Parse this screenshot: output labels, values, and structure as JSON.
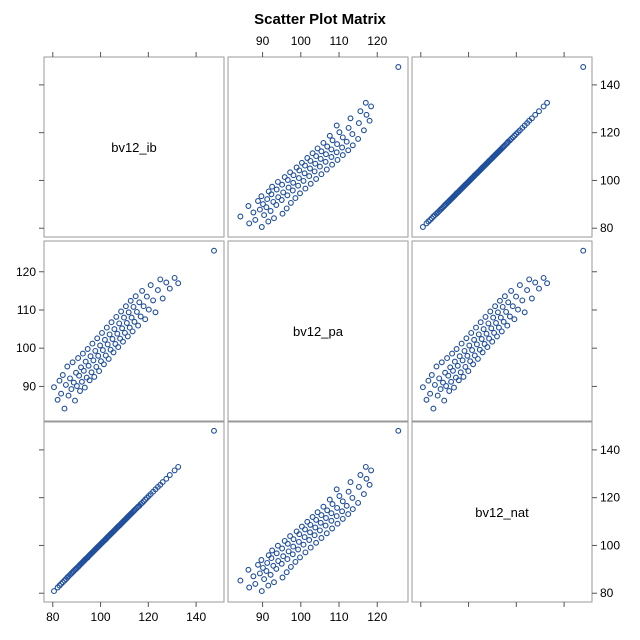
{
  "chart_data": {
    "type": "scatter",
    "title": "Scatter Plot Matrix",
    "layout": "3x3 scatter plot matrix",
    "variables": [
      "bv12_ib",
      "bv12_pa",
      "bv12_nat"
    ],
    "axes": {
      "bv12_ib": {
        "range": [
          78,
          150
        ],
        "ticks": [
          80,
          100,
          120,
          140
        ]
      },
      "bv12_pa": {
        "range": [
          82,
          127
        ],
        "ticks": [
          90,
          100,
          110,
          120
        ]
      },
      "bv12_nat": {
        "range": [
          78,
          150
        ],
        "ticks": [
          80,
          100,
          120,
          140
        ]
      }
    },
    "tick_placement": {
      "top": [
        "bv12_pa"
      ],
      "bottom": [
        "bv12_ib",
        "bv12_pa"
      ],
      "left": [
        "bv12_pa"
      ],
      "right": [
        "bv12_ib",
        "bv12_nat"
      ]
    },
    "marker_color": "#1f4e9c",
    "marker": "open-circle",
    "grid": false,
    "legend": "none",
    "series": [
      {
        "pairs": [
          [
            80.5,
            89.8,
            80.9
          ],
          [
            82.0,
            86.5,
            82.4
          ],
          [
            82.8,
            91.5,
            83.2
          ],
          [
            83.5,
            88.1,
            83.9
          ],
          [
            84.2,
            93.0,
            84.6
          ],
          [
            84.9,
            84.2,
            85.3
          ],
          [
            85.5,
            90.4,
            85.9
          ],
          [
            86.1,
            95.2,
            86.6
          ],
          [
            86.6,
            87.6,
            87.1
          ],
          [
            87.2,
            92.1,
            87.7
          ],
          [
            87.8,
            89.3,
            88.3
          ],
          [
            88.3,
            96.3,
            88.8
          ],
          [
            88.8,
            91.0,
            89.3
          ],
          [
            89.3,
            86.3,
            89.8
          ],
          [
            89.7,
            93.6,
            90.2
          ],
          [
            90.1,
            90.1,
            90.6
          ],
          [
            90.6,
            97.4,
            91.0
          ],
          [
            91.0,
            92.8,
            91.5
          ],
          [
            91.4,
            88.8,
            91.9
          ],
          [
            91.8,
            95.0,
            92.3
          ],
          [
            92.2,
            91.2,
            92.7
          ],
          [
            92.6,
            98.6,
            93.1
          ],
          [
            93.0,
            94.1,
            93.5
          ],
          [
            93.4,
            89.7,
            93.9
          ],
          [
            93.8,
            96.5,
            94.3
          ],
          [
            94.2,
            92.3,
            94.7
          ],
          [
            94.6,
            99.8,
            95.0
          ],
          [
            95.0,
            95.4,
            95.5
          ],
          [
            95.4,
            91.6,
            95.9
          ],
          [
            95.8,
            97.9,
            96.3
          ],
          [
            96.2,
            93.7,
            96.7
          ],
          [
            96.6,
            101.2,
            97.1
          ],
          [
            97.0,
            96.8,
            97.5
          ],
          [
            97.4,
            92.5,
            97.9
          ],
          [
            97.8,
            99.3,
            98.3
          ],
          [
            98.2,
            95.1,
            98.7
          ],
          [
            98.6,
            102.6,
            99.1
          ],
          [
            99.0,
            98.0,
            99.5
          ],
          [
            99.4,
            94.0,
            99.9
          ],
          [
            99.8,
            100.7,
            100.3
          ],
          [
            100.2,
            96.6,
            100.7
          ],
          [
            100.6,
            104.0,
            101.1
          ],
          [
            101.0,
            99.5,
            101.5
          ],
          [
            101.4,
            95.8,
            101.9
          ],
          [
            101.8,
            102.2,
            102.3
          ],
          [
            102.2,
            98.1,
            102.6
          ],
          [
            102.6,
            105.4,
            103.1
          ],
          [
            103.0,
            101.0,
            103.5
          ],
          [
            103.4,
            97.2,
            103.9
          ],
          [
            103.8,
            103.6,
            104.3
          ],
          [
            104.2,
            99.6,
            104.7
          ],
          [
            104.6,
            106.8,
            105.1
          ],
          [
            105.0,
            102.4,
            105.5
          ],
          [
            105.4,
            98.9,
            105.9
          ],
          [
            105.8,
            105.0,
            106.3
          ],
          [
            106.2,
            101.1,
            106.7
          ],
          [
            106.6,
            108.2,
            107.1
          ],
          [
            107.0,
            103.8,
            107.5
          ],
          [
            107.4,
            100.3,
            107.9
          ],
          [
            107.8,
            106.5,
            108.3
          ],
          [
            108.2,
            102.5,
            108.6
          ],
          [
            108.6,
            109.6,
            109.1
          ],
          [
            109.0,
            105.2,
            109.5
          ],
          [
            109.4,
            101.7,
            109.9
          ],
          [
            109.8,
            108.0,
            110.3
          ],
          [
            110.2,
            104.0,
            110.7
          ],
          [
            110.6,
            111.0,
            111.1
          ],
          [
            111.0,
            106.6,
            111.5
          ],
          [
            111.4,
            103.1,
            111.9
          ],
          [
            111.8,
            109.4,
            112.3
          ],
          [
            112.2,
            105.4,
            112.7
          ],
          [
            112.6,
            112.4,
            113.1
          ],
          [
            113.0,
            108.0,
            113.5
          ],
          [
            113.4,
            104.4,
            113.9
          ],
          [
            113.8,
            110.8,
            114.3
          ],
          [
            114.2,
            106.9,
            114.7
          ],
          [
            114.7,
            113.6,
            115.2
          ],
          [
            115.2,
            109.5,
            115.7
          ],
          [
            115.7,
            105.9,
            116.2
          ],
          [
            116.2,
            112.0,
            116.6
          ],
          [
            116.8,
            108.3,
            117.3
          ],
          [
            117.4,
            115.0,
            117.8
          ],
          [
            118.0,
            111.0,
            118.5
          ],
          [
            118.7,
            107.6,
            119.2
          ],
          [
            119.4,
            113.5,
            119.9
          ],
          [
            120.2,
            110.1,
            120.7
          ],
          [
            121.0,
            116.5,
            121.5
          ],
          [
            122.0,
            112.5,
            122.5
          ],
          [
            123.0,
            109.4,
            123.5
          ],
          [
            124.0,
            115.2,
            124.5
          ],
          [
            125.0,
            118.0,
            125.4
          ],
          [
            126.0,
            113.0,
            126.5
          ],
          [
            127.5,
            117.2,
            127.9
          ],
          [
            129.0,
            115.6,
            129.5
          ],
          [
            131.0,
            118.4,
            131.4
          ],
          [
            132.5,
            117.0,
            132.9
          ],
          [
            147.5,
            125.5,
            148.0
          ]
        ]
      }
    ]
  }
}
